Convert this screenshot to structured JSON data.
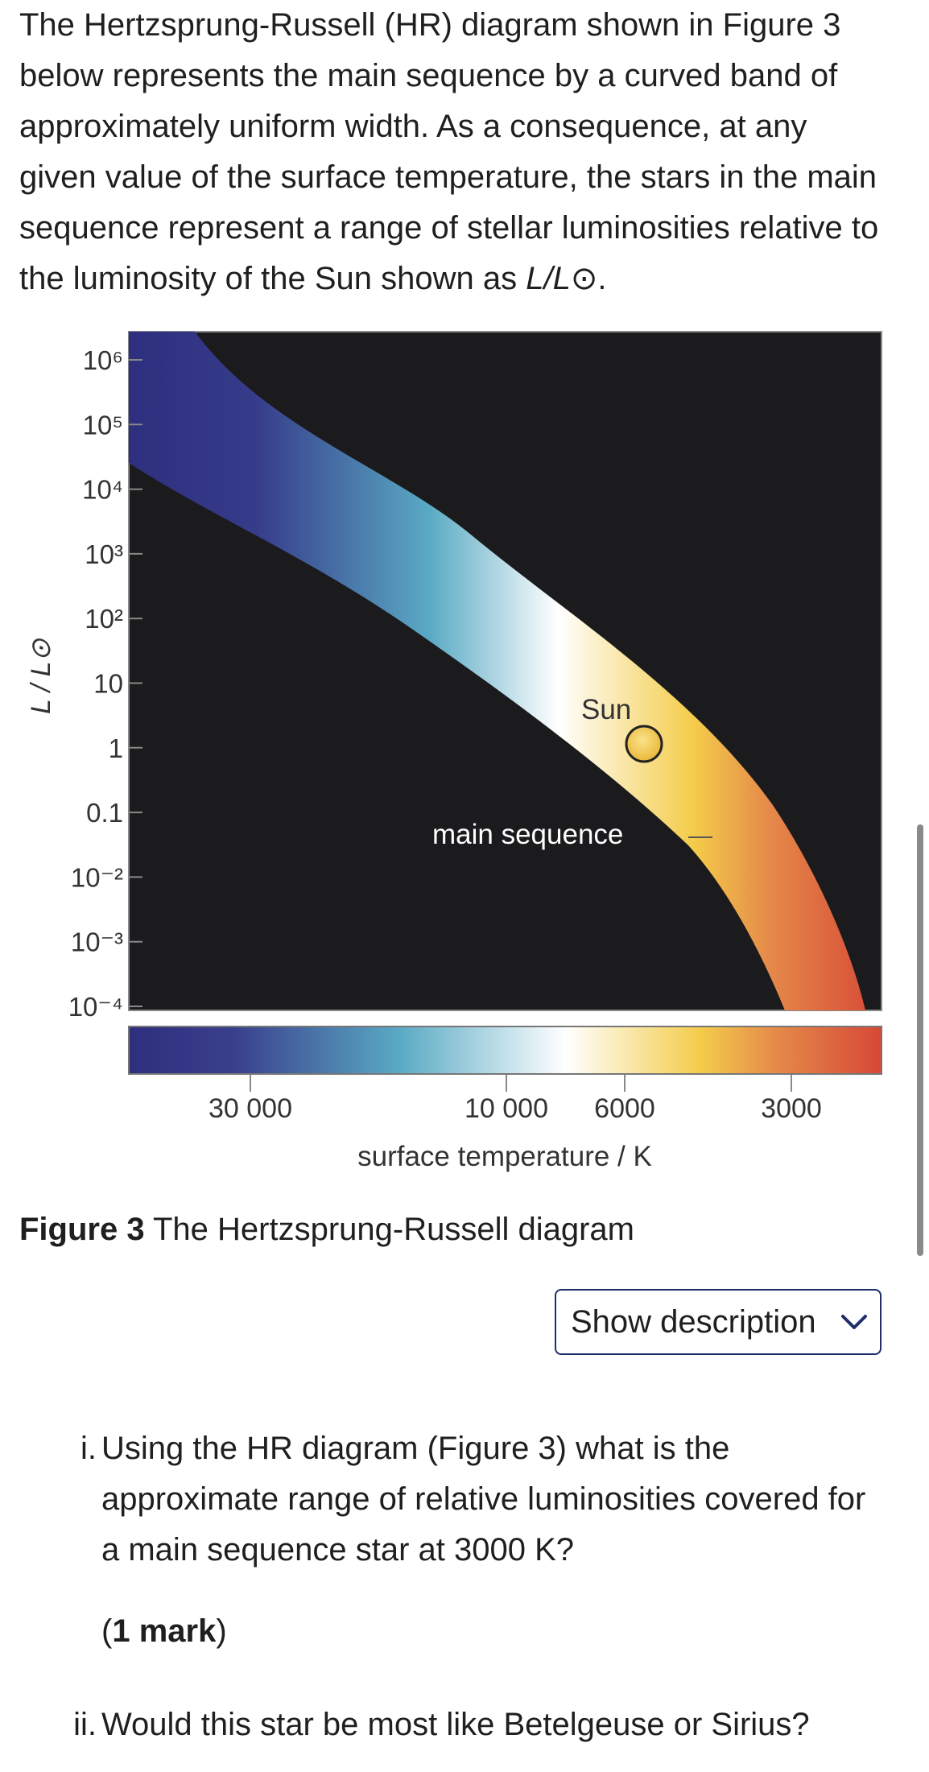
{
  "intro": {
    "text": "The Hertzsprung-Russell (HR) diagram shown in Figure 3 below represents the main sequence by a curved band of approximately uniform width. As a consequence, at any given value of the surface temperature, the stars in the main sequence represent a range of stellar luminosities relative to the luminosity of the Sun shown as ",
    "symbol": "L/L⊙",
    "end": "."
  },
  "figure": {
    "y_label": "L / L⊙",
    "y_ticks": [
      "10⁶",
      "10⁵",
      "10⁴",
      "10³",
      "10²",
      "10",
      "1",
      "0.1",
      "10⁻²",
      "10⁻³",
      "10⁻⁴"
    ],
    "x_label": "surface temperature / K",
    "x_ticks": [
      "30 000",
      "10 000",
      "6000",
      "3000"
    ],
    "band_label": "main sequence",
    "sun_label": "Sun",
    "colors": {
      "background": "#1b1a1c",
      "hot": "#2e2f7e",
      "blue": "#5aaac4",
      "white": "#ffffff",
      "yellow": "#f4cc4a",
      "orange": "#e58a4a",
      "red": "#d64836"
    }
  },
  "caption": {
    "label": "Figure 3",
    "text": " The Hertzsprung-Russell diagram"
  },
  "show_description": {
    "label": "Show description",
    "icon": "chevron-down-icon"
  },
  "questions": [
    {
      "number": "i.",
      "text": "Using the HR diagram (Figure 3) what is the approximate range of relative luminosities covered for a main sequence star at 3000 K?"
    },
    {
      "number": "ii.",
      "text": "Would this star be most like Betelgeuse or Sirius?"
    }
  ],
  "marks": {
    "open": "(",
    "bold": "1 mark",
    "close": ")"
  }
}
